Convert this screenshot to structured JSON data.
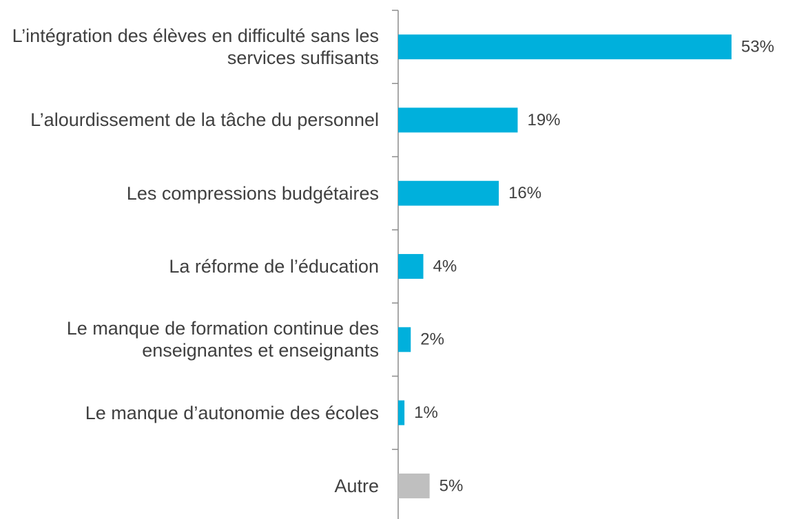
{
  "chart_data": {
    "type": "bar",
    "orientation": "horizontal",
    "categories": [
      "L’intégration des élèves en difficulté sans les services suffisants",
      "L’alourdissement de la tâche du personnel",
      "Les compressions budgétaires",
      "La réforme de l’éducation",
      "Le manque de formation continue des enseignantes et enseignants",
      "Le manque d’autonomie des écoles",
      "Autre"
    ],
    "values": [
      53,
      19,
      16,
      4,
      2,
      1,
      5
    ],
    "value_labels": [
      "53%",
      "19%",
      "16%",
      "4%",
      "2%",
      "1%",
      "5%"
    ],
    "colors": [
      "#00b0dc",
      "#00b0dc",
      "#00b0dc",
      "#00b0dc",
      "#00b0dc",
      "#00b0dc",
      "#bfbfbf"
    ]
  }
}
